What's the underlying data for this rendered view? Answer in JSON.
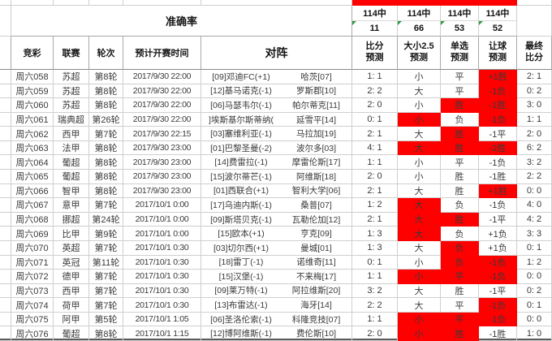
{
  "accuracy": {
    "label": "准确率",
    "stats": [
      {
        "total": "114中",
        "hits": "11"
      },
      {
        "total": "114中",
        "hits": "66"
      },
      {
        "total": "114中",
        "hits": "53"
      },
      {
        "total": "114中",
        "hits": "52"
      }
    ]
  },
  "columns": {
    "match_id": "竞彩",
    "league": "联赛",
    "round": "轮次",
    "kickoff": "预计开赛时间",
    "matchup": "对阵",
    "score_pred": "比分\n预测",
    "over_under_pred": "大小2.5\n预测",
    "single_pred": "单选\n预测",
    "handicap_pred": "让球\n预测",
    "final_score": "最终\n比分"
  },
  "colors": {
    "highlight": "#fe0000",
    "grid_line": "#cfcfcf",
    "flag_triangle": "#2e9b44"
  },
  "rows": [
    {
      "id": "周六058",
      "league": "苏超",
      "round": "第8轮",
      "time": "2017/9/30 22:00",
      "home": "[09]邓迪FC(+1)",
      "away": "哈茨[07]",
      "score": "1: 1",
      "score_hl": false,
      "ou": "小",
      "ou_hl": false,
      "single": "平",
      "single_hl": false,
      "handicap": "+1胜",
      "handicap_hl": true,
      "final": "2: 1"
    },
    {
      "id": "周六059",
      "league": "苏超",
      "round": "第8轮",
      "time": "2017/9/30 22:00",
      "home": "[12]基马诺克(-1)",
      "away": "罗斯郡[10]",
      "score": "2: 2",
      "score_hl": false,
      "ou": "大",
      "ou_hl": false,
      "single": "平",
      "single_hl": false,
      "handicap": "-1负",
      "handicap_hl": true,
      "final": "0: 2"
    },
    {
      "id": "周六060",
      "league": "苏超",
      "round": "第8轮",
      "time": "2017/9/30 22:00",
      "home": "[06]马瑟韦尔(-1)",
      "away": "帕尔蒂克[11]",
      "score": "2: 0",
      "score_hl": false,
      "ou": "小",
      "ou_hl": false,
      "single": "胜",
      "single_hl": true,
      "handicap": "-1胜",
      "handicap_hl": true,
      "final": "3: 0"
    },
    {
      "id": "周六061",
      "league": "瑞典超",
      "round": "第26轮",
      "time": "2017/9/30 22:00",
      "home": "]埃斯基尔斯蒂纳(",
      "away": "延雪平[14]",
      "score": "0: 1",
      "score_hl": false,
      "ou": "小",
      "ou_hl": true,
      "single": "负",
      "single_hl": false,
      "handicap": "-1负",
      "handicap_hl": true,
      "final": "1: 1"
    },
    {
      "id": "周六062",
      "league": "西甲",
      "round": "第7轮",
      "time": "2017/9/30 22:15",
      "home": "[03]塞维利亚(-1)",
      "away": "马拉加[19]",
      "score": "2: 1",
      "score_hl": false,
      "ou": "大",
      "ou_hl": false,
      "single": "胜",
      "single_hl": true,
      "handicap": "-1平",
      "handicap_hl": false,
      "final": "2: 0"
    },
    {
      "id": "周六063",
      "league": "法甲",
      "round": "第8轮",
      "time": "2017/9/30 23:00",
      "home": "[01]巴黎圣曼(-2)",
      "away": "波尔多[03]",
      "score": "4: 1",
      "score_hl": false,
      "ou": "大",
      "ou_hl": true,
      "single": "胜",
      "single_hl": true,
      "handicap": "-2胜",
      "handicap_hl": true,
      "final": "6: 2"
    },
    {
      "id": "周六064",
      "league": "葡超",
      "round": "第8轮",
      "time": "2017/9/30 23:00",
      "home": "[14]费雷拉(-1)",
      "away": "摩雷伦斯[17]",
      "score": "1: 1",
      "score_hl": false,
      "ou": "小",
      "ou_hl": false,
      "single": "平",
      "single_hl": false,
      "handicap": "-1负",
      "handicap_hl": false,
      "final": "3: 2"
    },
    {
      "id": "周六065",
      "league": "葡超",
      "round": "第8轮",
      "time": "2017/9/30 23:00",
      "home": "[15]波尔蒂芒(-1)",
      "away": "阿维斯[18]",
      "score": "2: 0",
      "score_hl": false,
      "ou": "小",
      "ou_hl": false,
      "single": "胜",
      "single_hl": false,
      "handicap": "-1胜",
      "handicap_hl": false,
      "final": "2: 2"
    },
    {
      "id": "周六066",
      "league": "智甲",
      "round": "第8轮",
      "time": "2017/9/30 23:00",
      "home": "[01]西联合(+1)",
      "away": "智利大学[06]",
      "score": "2: 1",
      "score_hl": false,
      "ou": "大",
      "ou_hl": false,
      "single": "胜",
      "single_hl": false,
      "handicap": "+1胜",
      "handicap_hl": true,
      "final": "0: 0"
    },
    {
      "id": "周六067",
      "league": "意甲",
      "round": "第7轮",
      "time": "2017/10/1 0:00",
      "home": "[17]乌迪内斯(-1)",
      "away": "桑普[07]",
      "score": "1: 2",
      "score_hl": false,
      "ou": "大",
      "ou_hl": true,
      "single": "负",
      "single_hl": false,
      "handicap": "-1负",
      "handicap_hl": false,
      "final": "4: 0"
    },
    {
      "id": "周六068",
      "league": "挪超",
      "round": "第24轮",
      "time": "2017/10/1 0:00",
      "home": "[09]斯塔贝克(-1)",
      "away": "瓦勒伦加[12]",
      "score": "2: 1",
      "score_hl": false,
      "ou": "大",
      "ou_hl": true,
      "single": "胜",
      "single_hl": true,
      "handicap": "-1平",
      "handicap_hl": false,
      "final": "4: 2"
    },
    {
      "id": "周六069",
      "league": "比甲",
      "round": "第9轮",
      "time": "2017/10/1 0:00",
      "home": "[15]欧本(+1)",
      "away": "亨克[09]",
      "score": "1: 3",
      "score_hl": false,
      "ou": "大",
      "ou_hl": true,
      "single": "负",
      "single_hl": false,
      "handicap": "+1负",
      "handicap_hl": false,
      "final": "3: 3"
    },
    {
      "id": "周六070",
      "league": "英超",
      "round": "第7轮",
      "time": "2017/10/1 0:30",
      "home": "[03]切尔西(+1)",
      "away": "曼城[01]",
      "score": "1: 3",
      "score_hl": false,
      "ou": "大",
      "ou_hl": false,
      "single": "负",
      "single_hl": true,
      "handicap": "+1负",
      "handicap_hl": false,
      "final": "0: 1"
    },
    {
      "id": "周六071",
      "league": "英冠",
      "round": "第11轮",
      "time": "2017/10/1 0:30",
      "home": "[18]雷丁(-1)",
      "away": "诺维奇[11]",
      "score": "0: 1",
      "score_hl": false,
      "ou": "小",
      "ou_hl": false,
      "single": "负",
      "single_hl": true,
      "handicap": "-1负",
      "handicap_hl": true,
      "final": "1: 2"
    },
    {
      "id": "周六072",
      "league": "德甲",
      "round": "第7轮",
      "time": "2017/10/1 0:30",
      "home": "[15]汉堡(-1)",
      "away": "不来梅[17]",
      "score": "1: 1",
      "score_hl": false,
      "ou": "小",
      "ou_hl": true,
      "single": "平",
      "single_hl": true,
      "handicap": "-1负",
      "handicap_hl": true,
      "final": "0: 0"
    },
    {
      "id": "周六073",
      "league": "西甲",
      "round": "第7轮",
      "time": "2017/10/1 0:30",
      "home": "[09]莱万特(-1)",
      "away": "阿拉维斯[20]",
      "score": "3: 2",
      "score_hl": false,
      "ou": "大",
      "ou_hl": false,
      "single": "胜",
      "single_hl": false,
      "handicap": "-1平",
      "handicap_hl": false,
      "final": "0: 2"
    },
    {
      "id": "周六074",
      "league": "荷甲",
      "round": "第7轮",
      "time": "2017/10/1 0:30",
      "home": "[13]布雷达(-1)",
      "away": "海牙[14]",
      "score": "2: 2",
      "score_hl": false,
      "ou": "大",
      "ou_hl": false,
      "single": "平",
      "single_hl": false,
      "handicap": "-1负",
      "handicap_hl": true,
      "final": "0: 1"
    },
    {
      "id": "周六075",
      "league": "阿甲",
      "round": "第5轮",
      "time": "2017/10/1 1:05",
      "home": "[06]圣洛伦索(-1)",
      "away": "科隆竞技[07]",
      "score": "1: 1",
      "score_hl": false,
      "ou": "小",
      "ou_hl": true,
      "single": "平",
      "single_hl": true,
      "handicap": "-1负",
      "handicap_hl": true,
      "final": "0: 0"
    },
    {
      "id": "周六076",
      "league": "葡超",
      "round": "第8轮",
      "time": "2017/10/1 1:15",
      "home": "[12]博阿维斯(-1)",
      "away": "费伦斯[10]",
      "score": "2: 0",
      "score_hl": false,
      "ou": "小",
      "ou_hl": true,
      "single": "胜",
      "single_hl": true,
      "handicap": "-1胜",
      "handicap_hl": false,
      "final": "1: 0"
    }
  ]
}
